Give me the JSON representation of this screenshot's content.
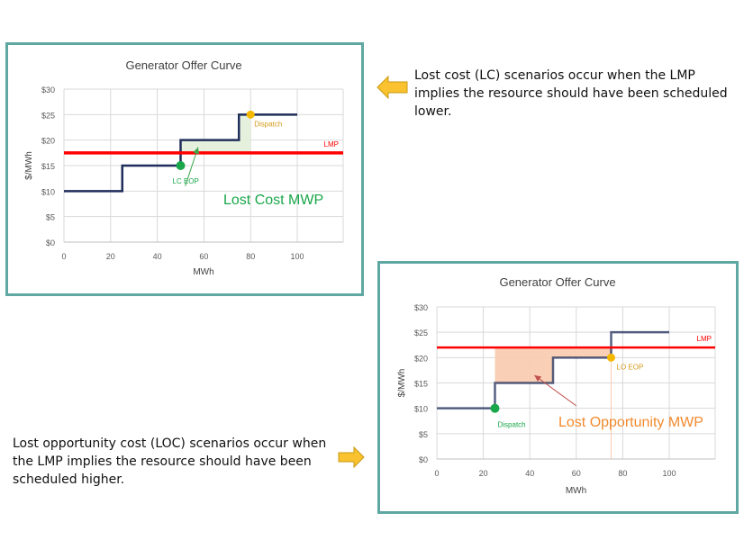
{
  "descriptions": {
    "lost_cost": "Lost cost (LC) scenarios occur when the LMP implies the resource should have been scheduled lower.",
    "lost_opportunity": "Lost opportunity cost (LOC) scenarios occur when the LMP implies the resource should have been scheduled higher."
  },
  "icons": {
    "arrow1": "arrow-left-icon",
    "arrow2": "arrow-right-icon",
    "arrow_color": "#f9c22e"
  },
  "colors": {
    "frame": "#5fa8a2",
    "curve": "#1f2d5a",
    "lmp": "#ff0000",
    "dispatch_lc": "#f5b800",
    "eop_lc": "#1aa64a",
    "lc_area": "#e2efd9",
    "lo_area": "#f8cbad",
    "lc_text": "#1aa64a",
    "lo_text": "#f28a2e"
  },
  "chart_data": [
    {
      "type": "line",
      "title": "Generator Offer Curve",
      "xlabel": "MWh",
      "ylabel": "$/MWh",
      "xlim": [
        0,
        120
      ],
      "ylim": [
        0,
        30
      ],
      "xticks": [
        0,
        20,
        40,
        60,
        80,
        100
      ],
      "yticks": [
        "$0",
        "$5",
        "$10",
        "$15",
        "$20",
        "$25",
        "$30"
      ],
      "grid": true,
      "series": [
        {
          "name": "Offer Curve",
          "x": [
            0,
            25,
            25,
            50,
            50,
            75,
            75,
            100
          ],
          "y": [
            10,
            10,
            15,
            15,
            20,
            20,
            25,
            25
          ]
        }
      ],
      "lmp": {
        "label": "LMP",
        "value": 17.5
      },
      "points": [
        {
          "label": "Dispatch",
          "x": 80,
          "y": 25,
          "color": "#f5b800"
        },
        {
          "label": "LC EOP",
          "x": 50,
          "y": 15,
          "color": "#1aa64a"
        }
      ],
      "shaded_region": {
        "label": "Lost Cost MWP",
        "x": [
          50,
          80
        ],
        "between": "LMP and offer curve"
      },
      "annotation": "Lost Cost MWP"
    },
    {
      "type": "line",
      "title": "Generator Offer Curve",
      "xlabel": "MWh",
      "ylabel": "$/MWh",
      "xlim": [
        0,
        120
      ],
      "ylim": [
        0,
        30
      ],
      "xticks": [
        0,
        20,
        40,
        60,
        80,
        100
      ],
      "yticks": [
        "$0",
        "$5",
        "$10",
        "$15",
        "$20",
        "$25",
        "$30"
      ],
      "grid": true,
      "series": [
        {
          "name": "Offer Curve",
          "x": [
            0,
            25,
            25,
            50,
            50,
            75,
            75,
            100
          ],
          "y": [
            10,
            10,
            15,
            15,
            20,
            20,
            25,
            25
          ]
        }
      ],
      "lmp": {
        "label": "LMP",
        "value": 22
      },
      "points": [
        {
          "label": "Dispatch",
          "x": 25,
          "y": 10,
          "color": "#1aa64a"
        },
        {
          "label": "LO EOP",
          "x": 75,
          "y": 20,
          "color": "#f5b800"
        }
      ],
      "shaded_region": {
        "label": "Lost Opportunity MWP",
        "x": [
          25,
          75
        ],
        "between": "offer curve and LMP"
      },
      "annotation": "Lost Opportunity MWP"
    }
  ]
}
